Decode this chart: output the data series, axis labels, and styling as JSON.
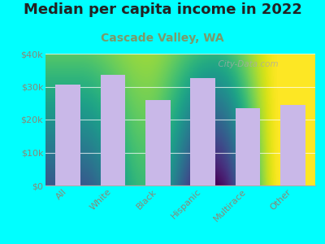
{
  "title": "Median per capita income in 2022",
  "subtitle": "Cascade Valley, WA",
  "categories": [
    "All",
    "White",
    "Black",
    "Hispanic",
    "Multirace",
    "Other"
  ],
  "values": [
    30500,
    33500,
    26000,
    32500,
    23500,
    24500
  ],
  "bar_color": "#c9b8e8",
  "background_color": "#00ffff",
  "plot_bg_gradient_top": "#eef5e8",
  "plot_bg_gradient_bottom": "#d8eec8",
  "title_color": "#222222",
  "subtitle_color": "#7a9a6a",
  "tick_label_color": "#888877",
  "ylim": [
    0,
    40000
  ],
  "yticks": [
    0,
    10000,
    20000,
    30000,
    40000
  ],
  "ytick_labels": [
    "$0",
    "$10k",
    "$20k",
    "$30k",
    "$40k"
  ],
  "watermark_text": "  City-Data.com",
  "title_fontsize": 13,
  "subtitle_fontsize": 10,
  "tick_fontsize": 8
}
